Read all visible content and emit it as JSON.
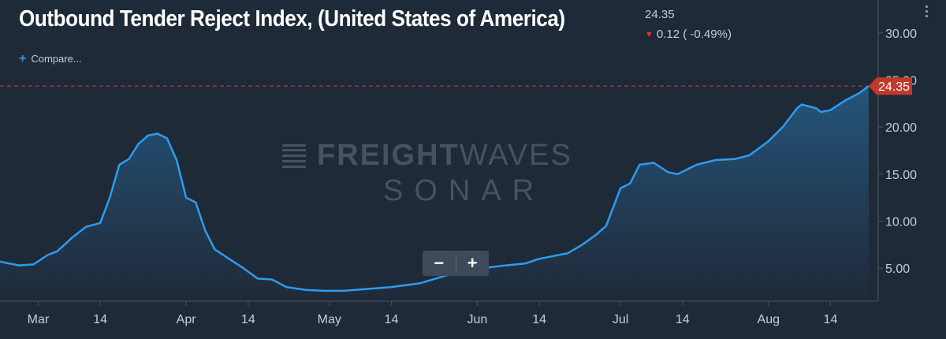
{
  "header": {
    "title": "Outbound Tender Reject Index, (United States of America)",
    "last_value": "24.35",
    "change": "0.12 ( -0.49%)",
    "change_direction_icon": "arrow-down-icon",
    "compare_label": "Compare...",
    "menu_icon": "kebab-menu-icon"
  },
  "watermark": {
    "line1_bold": "FREIGHT",
    "line1_light": "WAVES",
    "line2": "SONAR"
  },
  "zoom": {
    "minus_label": "−",
    "plus_label": "+"
  },
  "colors": {
    "background": "#1f2a38",
    "line": "#2e9bf0",
    "area_top": "#24577f",
    "area_bottom": "#1f2a38",
    "last_value_marker": "#c0392b",
    "reference_line": "#c0392b"
  },
  "chart_data": {
    "type": "area",
    "title": "Outbound Tender Reject Index, (United States of America)",
    "xlabel": "",
    "ylabel": "",
    "ylim": [
      1.5,
      33.5
    ],
    "y_ticks": [
      "5.00",
      "10.00",
      "15.00",
      "20.00",
      "25.00",
      "30.00"
    ],
    "x_tick_labels": [
      "Mar",
      "14",
      "Apr",
      "14",
      "May",
      "14",
      "Jun",
      "14",
      "Jul",
      "14",
      "Aug",
      "14"
    ],
    "x_range": [
      "2020-02-22",
      "2020-08-24"
    ],
    "last_value": 24.35,
    "last_value_label": "24.35",
    "reference_line": 24.35,
    "grid": false,
    "series": [
      {
        "x": [
          "2020-02-22",
          "2020-02-24",
          "2020-02-26",
          "2020-02-29",
          "2020-03-03",
          "2020-03-05",
          "2020-03-08",
          "2020-03-11",
          "2020-03-14",
          "2020-03-16",
          "2020-03-18",
          "2020-03-20",
          "2020-03-22",
          "2020-03-24",
          "2020-03-26",
          "2020-03-28",
          "2020-03-30",
          "2020-04-01",
          "2020-04-03",
          "2020-04-05",
          "2020-04-07",
          "2020-04-10",
          "2020-04-13",
          "2020-04-16",
          "2020-04-19",
          "2020-04-22",
          "2020-04-26",
          "2020-04-30",
          "2020-05-04",
          "2020-05-09",
          "2020-05-14",
          "2020-05-20",
          "2020-05-26",
          "2020-05-29",
          "2020-06-02",
          "2020-06-07",
          "2020-06-11",
          "2020-06-14",
          "2020-06-17",
          "2020-06-20",
          "2020-06-23",
          "2020-06-26",
          "2020-06-28",
          "2020-07-01",
          "2020-07-03",
          "2020-07-05",
          "2020-07-08",
          "2020-07-11",
          "2020-07-13",
          "2020-07-17",
          "2020-07-21",
          "2020-07-25",
          "2020-07-28",
          "2020-08-01",
          "2020-08-04",
          "2020-08-07",
          "2020-08-08",
          "2020-08-11",
          "2020-08-12",
          "2020-08-14",
          "2020-08-17",
          "2020-08-20",
          "2020-08-22"
        ],
        "y": [
          5.7,
          5.5,
          5.3,
          5.4,
          6.4,
          6.8,
          8.2,
          9.4,
          9.8,
          12.5,
          16.0,
          16.6,
          18.2,
          19.1,
          19.3,
          18.8,
          16.5,
          12.5,
          12.0,
          9.0,
          7.0,
          6.0,
          5.0,
          3.9,
          3.8,
          3.0,
          2.7,
          2.6,
          2.6,
          2.8,
          3.0,
          3.4,
          4.3,
          4.5,
          5.0,
          5.3,
          5.5,
          6.0,
          6.3,
          6.6,
          7.5,
          8.6,
          9.5,
          13.5,
          14.0,
          16.0,
          16.2,
          15.2,
          15.0,
          16.0,
          16.5,
          16.6,
          17.0,
          18.5,
          20.0,
          22.0,
          22.4,
          22.0,
          21.6,
          21.8,
          22.8,
          23.6,
          24.35
        ]
      }
    ]
  }
}
